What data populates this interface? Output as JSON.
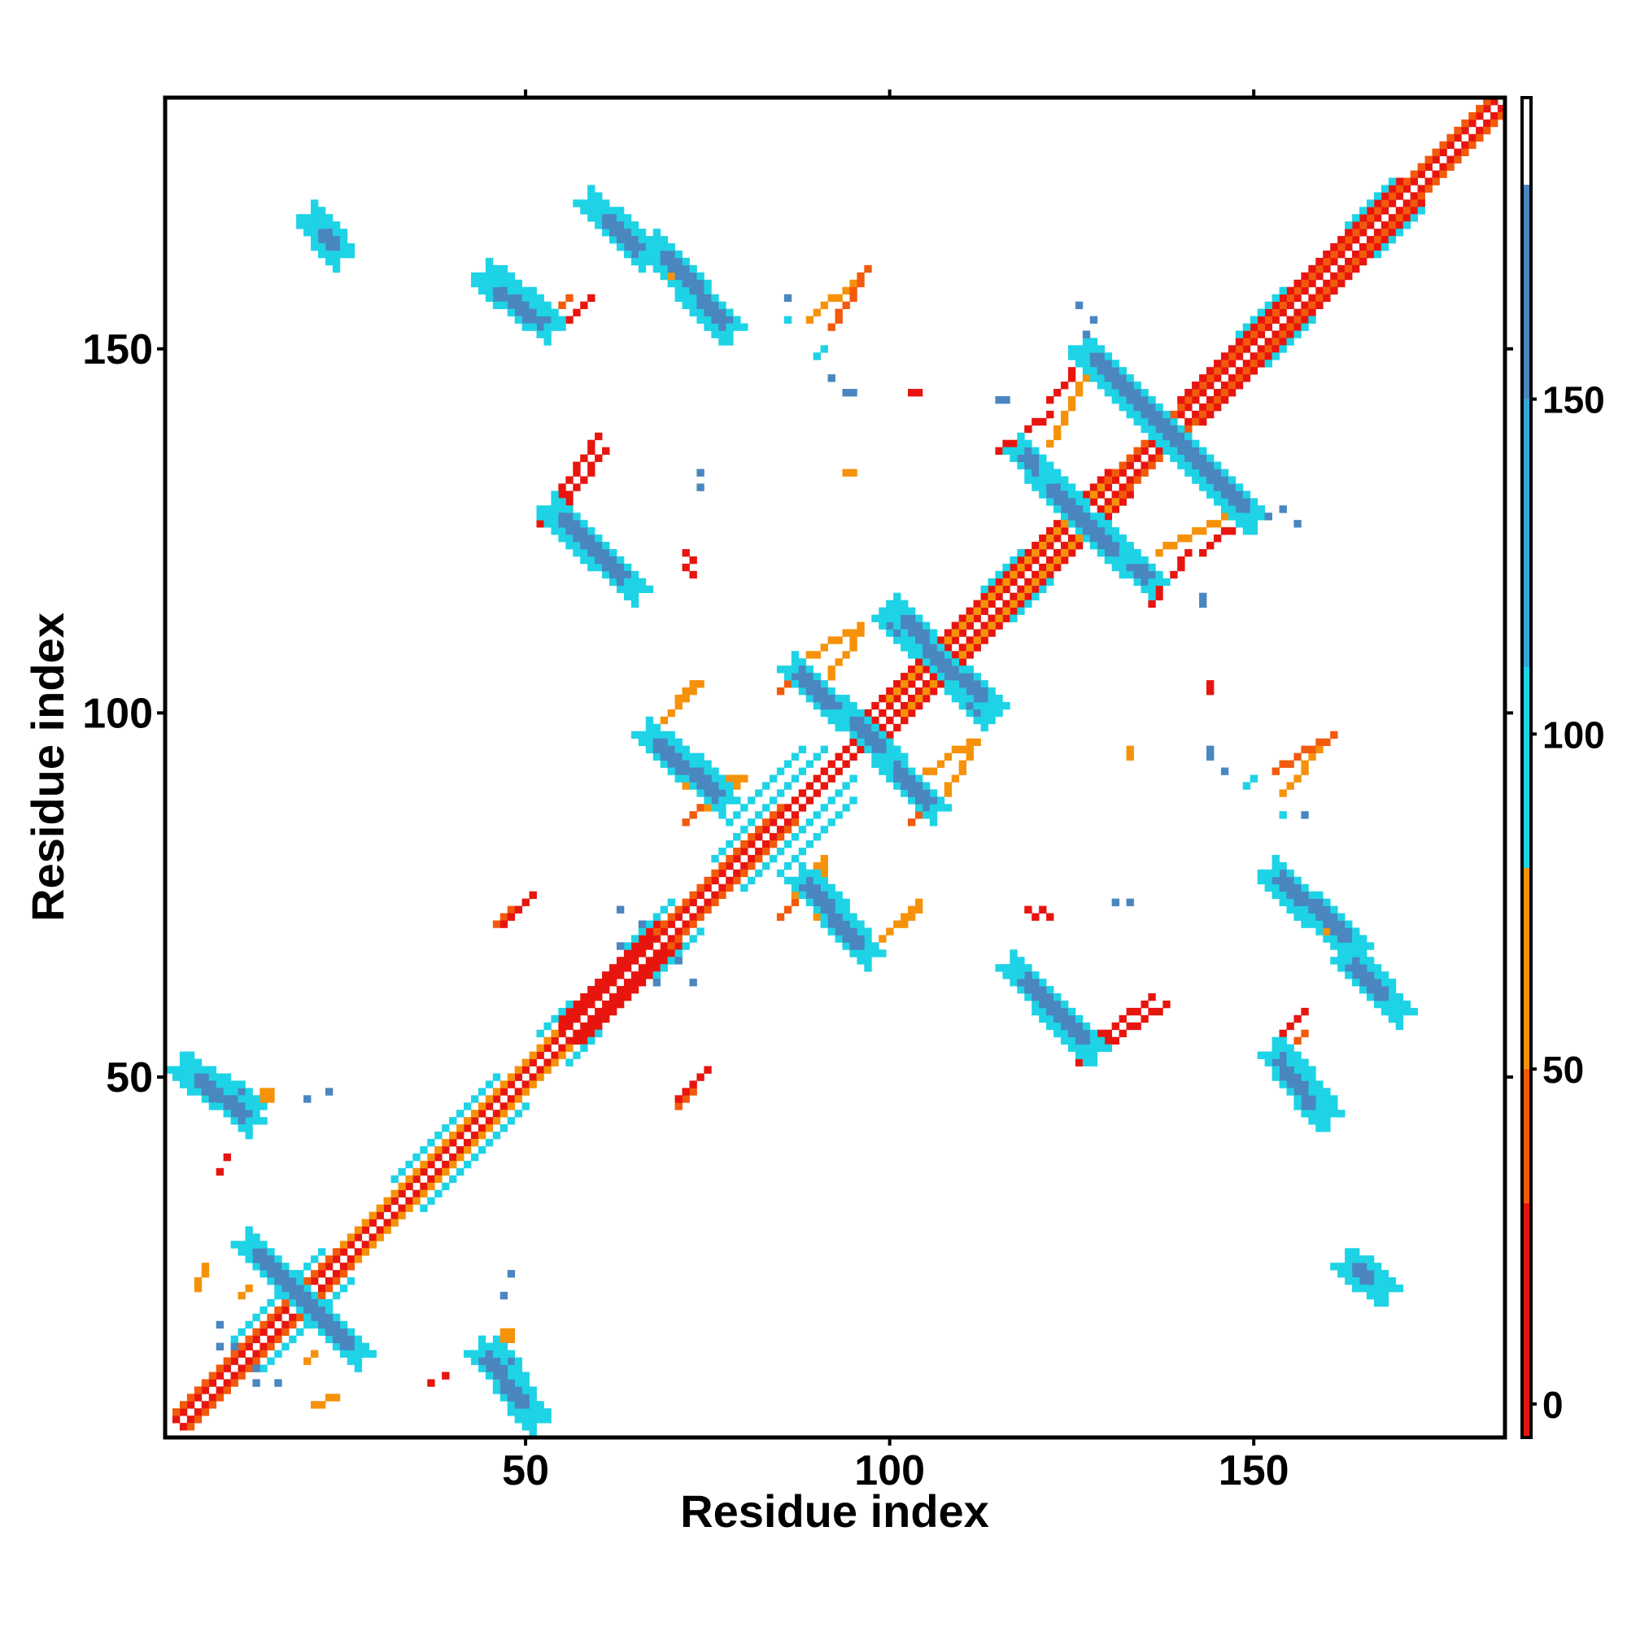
{
  "chart_data": {
    "type": "heatmap",
    "title": "",
    "xlabel": "Residue index",
    "ylabel": "Residue index",
    "xlim": [
      1,
      184
    ],
    "ylim": [
      1,
      184
    ],
    "x_ticks": [
      50,
      100,
      150
    ],
    "y_ticks": [
      50,
      100,
      150
    ],
    "x_tick_labels": [
      "50",
      "100",
      "150"
    ],
    "y_tick_labels": [
      "50",
      "100",
      "150"
    ],
    "grid": false,
    "colorbar": {
      "position": "right",
      "ticks": [
        0,
        50,
        100,
        150
      ],
      "tick_labels": [
        "0",
        "50",
        "100",
        "150"
      ],
      "range": [
        -5,
        195
      ],
      "bands": [
        {
          "from": -5,
          "to": 30,
          "color": "#e8150f"
        },
        {
          "from": 30,
          "to": 50,
          "color": "#f25a0c"
        },
        {
          "from": 50,
          "to": 80,
          "color": "#f5920a"
        },
        {
          "from": 80,
          "to": 110,
          "color": "#1ed3e6"
        },
        {
          "from": 110,
          "to": 150,
          "color": "#33a8d8"
        },
        {
          "from": 150,
          "to": 182,
          "color": "#4a86c0"
        },
        {
          "from": 182,
          "to": 195,
          "color": "#ffffff"
        }
      ]
    },
    "category_colors": {
      "a": "#e8150f",
      "h": "#f25a0c",
      "g": "#f5920a",
      "e": "#1ed3e6",
      "m": "#33a8d8",
      "b": "#4a86c0"
    },
    "diagonal_features": [
      {
        "c": "a",
        "r0": 2,
        "r1": 184,
        "o": 1
      },
      {
        "c": "h",
        "r0": 2,
        "r1": 30,
        "o": 2
      },
      {
        "c": "g",
        "r0": 25,
        "r1": 55,
        "o": 2
      },
      {
        "c": "a",
        "r0": 55,
        "r1": 68,
        "o": 2
      },
      {
        "c": "a",
        "r0": 55,
        "r1": 68,
        "o": 3
      },
      {
        "c": "h",
        "r0": 68,
        "r1": 85,
        "o": 2
      },
      {
        "c": "a",
        "r0": 95,
        "r1": 130,
        "o": 3
      },
      {
        "c": "g",
        "r0": 100,
        "r1": 135,
        "o": 2
      },
      {
        "c": "h",
        "r0": 130,
        "r1": 184,
        "o": 2
      },
      {
        "c": "a",
        "r0": 140,
        "r1": 170,
        "o": 3
      },
      {
        "c": "e",
        "r0": 10,
        "r1": 22,
        "o": 4
      },
      {
        "c": "e",
        "r0": 32,
        "r1": 46,
        "o": 4
      },
      {
        "c": "e",
        "r0": 52,
        "r1": 56,
        "o": 4
      },
      {
        "c": "e",
        "r0": 64,
        "r1": 70,
        "o": 4
      },
      {
        "c": "e",
        "r0": 76,
        "r1": 91,
        "o": 4
      },
      {
        "c": "e",
        "r0": 78,
        "r1": 88,
        "o": 7
      },
      {
        "c": "e",
        "r0": 113,
        "r1": 118,
        "o": 4
      },
      {
        "c": "e",
        "r0": 148,
        "r1": 154,
        "o": 4
      },
      {
        "c": "e",
        "r0": 163,
        "r1": 169,
        "o": 4
      }
    ],
    "strand_pairs": [
      {
        "x0": 3,
        "y0": 51,
        "x1": 12,
        "y1": 46,
        "w": 2,
        "c": "b"
      },
      {
        "x0": 13,
        "y0": 26,
        "x1": 27,
        "y1": 12,
        "w": 2,
        "c": "b"
      },
      {
        "x0": 44,
        "y0": 12,
        "x1": 51,
        "y1": 4,
        "w": 2,
        "c": "b"
      },
      {
        "x0": 21,
        "y0": 168,
        "x1": 24,
        "y1": 164,
        "w": 2,
        "c": "b"
      },
      {
        "x0": 45,
        "y0": 160,
        "x1": 53,
        "y1": 154,
        "w": 2,
        "c": "b"
      },
      {
        "x0": 59,
        "y0": 170,
        "x1": 66,
        "y1": 164,
        "w": 2,
        "c": "b"
      },
      {
        "x0": 68,
        "y0": 163,
        "x1": 77,
        "y1": 153,
        "w": 2,
        "c": "b"
      },
      {
        "x0": 54,
        "y0": 127,
        "x1": 65,
        "y1": 117,
        "w": 2,
        "c": "b"
      },
      {
        "x0": 67,
        "y0": 97,
        "x1": 76,
        "y1": 90,
        "w": 2,
        "c": "b"
      },
      {
        "x0": 88,
        "y0": 77,
        "x1": 97,
        "y1": 67,
        "w": 2,
        "c": "b"
      },
      {
        "x0": 87,
        "y0": 106,
        "x1": 100,
        "y1": 94,
        "w": 2,
        "c": "b"
      },
      {
        "x0": 100,
        "y0": 113,
        "x1": 114,
        "y1": 101,
        "w": 2,
        "c": "b"
      },
      {
        "x0": 118,
        "y0": 136,
        "x1": 132,
        "y1": 121,
        "w": 2,
        "c": "b"
      },
      {
        "x0": 127,
        "y0": 149,
        "x1": 150,
        "y1": 127,
        "w": 2,
        "c": "b"
      },
      {
        "x0": 118,
        "y0": 64,
        "x1": 128,
        "y1": 54,
        "w": 2,
        "c": "b"
      },
      {
        "x0": 153,
        "y0": 78,
        "x1": 164,
        "y1": 68,
        "w": 2,
        "c": "b"
      },
      {
        "x0": 163,
        "y0": 66,
        "x1": 169,
        "y1": 60,
        "w": 2,
        "c": "b"
      },
      {
        "x0": 153,
        "y0": 53,
        "x1": 159,
        "y1": 45,
        "w": 2,
        "c": "b"
      },
      {
        "x0": 163,
        "y0": 24,
        "x1": 167,
        "y1": 21,
        "w": 2,
        "c": "b"
      }
    ],
    "contact_segments": [
      {
        "x0": 53,
        "y0": 154,
        "x1": 56,
        "y1": 157,
        "c": "h"
      },
      {
        "x0": 89,
        "y0": 154,
        "x1": 95,
        "y1": 159,
        "c": "g"
      },
      {
        "x0": 54,
        "y0": 127,
        "x1": 61,
        "y1": 136,
        "c": "a"
      },
      {
        "x0": 70,
        "y0": 100,
        "x1": 74,
        "y1": 104,
        "c": "g"
      },
      {
        "x0": 72,
        "y0": 90,
        "x1": 80,
        "y1": 91,
        "c": "g"
      },
      {
        "x0": 72,
        "y0": 85,
        "x1": 76,
        "y1": 88,
        "c": "h"
      },
      {
        "x0": 46,
        "y0": 71,
        "x1": 50,
        "y1": 74,
        "c": "h"
      },
      {
        "x0": 71,
        "y0": 47,
        "x1": 75,
        "y1": 51,
        "c": "a"
      },
      {
        "x0": 87,
        "y0": 75,
        "x1": 91,
        "y1": 80,
        "c": "g"
      },
      {
        "x0": 98,
        "y0": 68,
        "x1": 104,
        "y1": 73,
        "c": "g"
      },
      {
        "x0": 86,
        "y0": 106,
        "x1": 96,
        "y1": 112,
        "c": "g"
      },
      {
        "x0": 104,
        "y0": 91,
        "x1": 111,
        "y1": 96,
        "c": "g"
      },
      {
        "x0": 103,
        "y0": 85,
        "x1": 107,
        "y1": 88,
        "c": "h"
      },
      {
        "x0": 115,
        "y0": 136,
        "x1": 122,
        "y1": 141,
        "c": "a"
      },
      {
        "x0": 122,
        "y0": 143,
        "x1": 127,
        "y1": 149,
        "c": "a"
      },
      {
        "x0": 137,
        "y0": 122,
        "x1": 148,
        "y1": 128,
        "c": "g"
      },
      {
        "x0": 153,
        "y0": 92,
        "x1": 161,
        "y1": 97,
        "c": "h"
      },
      {
        "x0": 126,
        "y0": 52,
        "x1": 138,
        "y1": 60,
        "c": "a"
      },
      {
        "x0": 154,
        "y0": 56,
        "x1": 157,
        "y1": 59,
        "c": "a"
      },
      {
        "x0": 11,
        "y0": 20,
        "x1": 12,
        "y1": 21,
        "c": "g"
      },
      {
        "x0": 14,
        "y0": 46,
        "x1": 15,
        "y1": 48,
        "c": "g"
      },
      {
        "x0": 21,
        "y0": 5,
        "x1": 24,
        "y1": 6,
        "c": "g"
      },
      {
        "x0": 46,
        "y0": 14,
        "x1": 48,
        "y1": 14,
        "c": "g"
      }
    ],
    "isolated_contacts": [
      {
        "x": 9,
        "y": 39,
        "c": "a"
      },
      {
        "x": 23,
        "y": 48,
        "c": "b"
      },
      {
        "x": 13,
        "y": 10,
        "c": "b"
      },
      {
        "x": 13,
        "y": 8,
        "c": "b"
      },
      {
        "x": 8,
        "y": 16,
        "c": "b"
      },
      {
        "x": 37,
        "y": 8,
        "c": "a"
      },
      {
        "x": 47,
        "y": 20,
        "c": "b"
      },
      {
        "x": 63,
        "y": 73,
        "c": "b"
      },
      {
        "x": 66,
        "y": 71,
        "c": "b"
      },
      {
        "x": 68,
        "y": 63,
        "c": "b"
      },
      {
        "x": 73,
        "y": 121,
        "c": "a"
      },
      {
        "x": 73,
        "y": 119,
        "c": "a"
      },
      {
        "x": 74,
        "y": 131,
        "c": "b"
      },
      {
        "x": 86,
        "y": 157,
        "c": "b"
      },
      {
        "x": 90,
        "y": 149,
        "c": "e"
      },
      {
        "x": 92,
        "y": 146,
        "c": "b"
      },
      {
        "x": 94,
        "y": 144,
        "c": "b"
      },
      {
        "x": 94,
        "y": 133,
        "c": "g"
      },
      {
        "x": 104,
        "y": 144,
        "c": "a"
      },
      {
        "x": 116,
        "y": 143,
        "c": "b"
      },
      {
        "x": 126,
        "y": 156,
        "c": "b"
      },
      {
        "x": 128,
        "y": 154,
        "c": "b"
      },
      {
        "x": 120,
        "y": 72,
        "c": "a"
      },
      {
        "x": 122,
        "y": 72,
        "c": "a"
      },
      {
        "x": 133,
        "y": 74,
        "c": "b"
      },
      {
        "x": 133,
        "y": 95,
        "c": "g"
      },
      {
        "x": 137,
        "y": 116,
        "c": "a"
      },
      {
        "x": 143,
        "y": 115,
        "c": "b"
      },
      {
        "x": 144,
        "y": 103,
        "c": "a"
      },
      {
        "x": 144,
        "y": 95,
        "c": "b"
      },
      {
        "x": 150,
        "y": 91,
        "c": "e"
      },
      {
        "x": 152,
        "y": 127,
        "c": "b"
      },
      {
        "x": 154,
        "y": 86,
        "c": "e"
      },
      {
        "x": 160,
        "y": 70,
        "c": "g"
      }
    ]
  }
}
